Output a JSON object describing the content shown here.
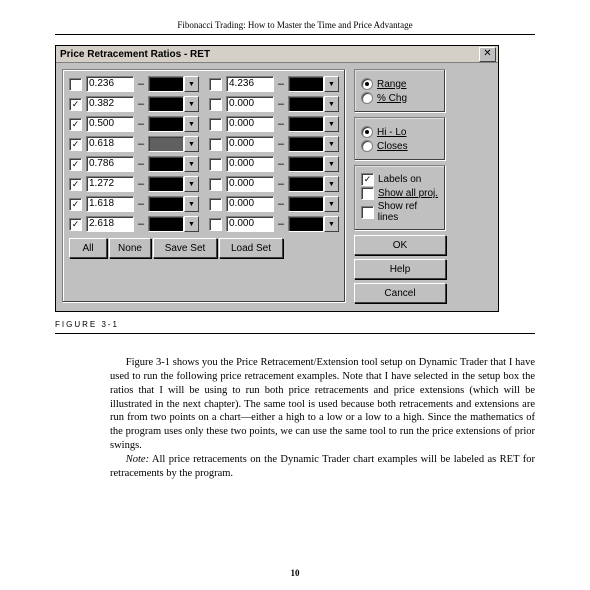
{
  "running_head": "Fibonacci Trading: How to Master the Time and Price Advantage",
  "dialog": {
    "title": "Price Retracement Ratios - RET",
    "close_glyph": "✕",
    "ratios_left": [
      {
        "checked": false,
        "value": "0.236",
        "swatch": "#000000"
      },
      {
        "checked": true,
        "value": "0.382",
        "swatch": "#000000"
      },
      {
        "checked": true,
        "value": "0.500",
        "swatch": "#000000"
      },
      {
        "checked": true,
        "value": "0.618",
        "swatch": "#606060"
      },
      {
        "checked": true,
        "value": "0.786",
        "swatch": "#000000"
      },
      {
        "checked": true,
        "value": "1.272",
        "swatch": "#000000"
      },
      {
        "checked": true,
        "value": "1.618",
        "swatch": "#000000"
      },
      {
        "checked": true,
        "value": "2.618",
        "swatch": "#000000"
      }
    ],
    "ratios_right": [
      {
        "checked": false,
        "value": "4.236",
        "swatch": "#000000"
      },
      {
        "checked": false,
        "value": "0.000",
        "swatch": "#000000"
      },
      {
        "checked": false,
        "value": "0.000",
        "swatch": "#000000"
      },
      {
        "checked": false,
        "value": "0.000",
        "swatch": "#000000"
      },
      {
        "checked": false,
        "value": "0.000",
        "swatch": "#000000"
      },
      {
        "checked": false,
        "value": "0.000",
        "swatch": "#000000"
      },
      {
        "checked": false,
        "value": "0.000",
        "swatch": "#000000"
      },
      {
        "checked": false,
        "value": "0.000",
        "swatch": "#000000"
      }
    ],
    "buttons": {
      "all": "All",
      "none": "None",
      "save_set": "Save Set",
      "load_set": "Load Set"
    },
    "display_group": {
      "range": "Range",
      "pct_chg": "% Chg",
      "range_selected": true
    },
    "src_group": {
      "hilo": "Hi - Lo",
      "closes": "Closes",
      "hilo_selected": true
    },
    "labels_on": {
      "label": "Labels on",
      "checked": true
    },
    "show_all_proj": {
      "label": "Show all proj.",
      "checked": false
    },
    "show_ref_lines": {
      "label": "Show ref lines",
      "checked": false
    },
    "ok": "OK",
    "help": "Help",
    "cancel": "Cancel",
    "dropdown_glyph": "▼",
    "checkmark": "✓"
  },
  "figure_label": "FIGURE 3-1",
  "body": {
    "p1": "Figure 3-1 shows you the Price Retracement/Extension tool setup on Dynamic Trader that I have used to run the following price retracement examples. Note that I have selected in the setup box the ratios that I will be using to run both price retracements and price extensions (which will be illustrated in the next chapter). The same tool is used because both retracements and extensions are run from two points on a chart—either a high to a low or a low to a high. Since the mathematics of the program uses only these two points, we can use the same tool to run the price extensions of prior swings.",
    "p2_prefix": "Note:",
    "p2_rest": " All price retracements on the Dynamic Trader chart examples will be labeled as RET for retracements by the program."
  },
  "page_number": "10"
}
